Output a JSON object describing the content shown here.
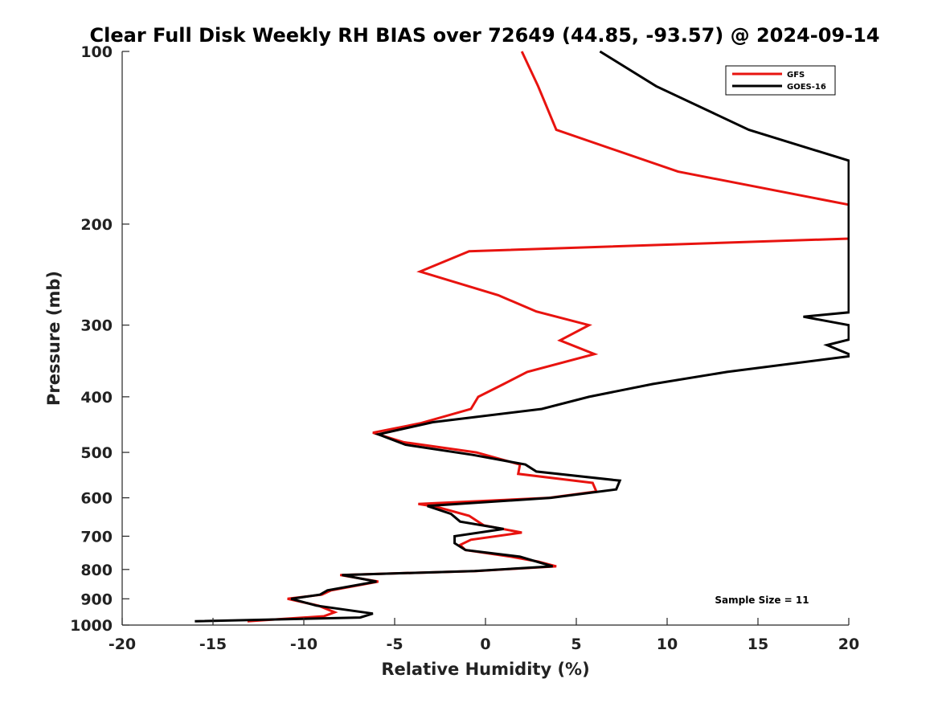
{
  "chart_data": {
    "type": "line",
    "title": "Clear Full Disk Weekly RH BIAS over 72649 (44.85, -93.57) @ 2024-09-14",
    "xlabel": "Relative Humidity (%)",
    "ylabel": "Pressure (mb)",
    "xlim": [
      -20,
      20
    ],
    "ylim": [
      100,
      1000
    ],
    "y_scale": "log",
    "y_reversed": true,
    "x_ticks": [
      -20,
      -15,
      -10,
      -5,
      0,
      5,
      10,
      15,
      20
    ],
    "y_ticks": [
      100,
      200,
      300,
      400,
      500,
      600,
      700,
      800,
      900,
      1000
    ],
    "grid": false,
    "legend_position": "top-right",
    "annotation": "Sample Size = 11",
    "series": [
      {
        "name": "GFS",
        "color": "#e8130f",
        "points": [
          [
            2.0,
            100
          ],
          [
            2.9,
            115
          ],
          [
            3.9,
            137
          ],
          [
            10.6,
            162
          ],
          [
            20.0,
            185
          ],
          [
            20.0,
            212
          ],
          [
            -0.9,
            223
          ],
          [
            -3.6,
            242
          ],
          [
            0.7,
            266
          ],
          [
            2.8,
            284
          ],
          [
            5.7,
            300
          ],
          [
            4.1,
            319
          ],
          [
            6.0,
            337
          ],
          [
            2.3,
            362
          ],
          [
            1.0,
            380
          ],
          [
            -0.4,
            400
          ],
          [
            -0.8,
            420
          ],
          [
            -3.6,
            445
          ],
          [
            -6.2,
            462
          ],
          [
            -4.5,
            480
          ],
          [
            -0.5,
            500
          ],
          [
            1.9,
            525
          ],
          [
            1.8,
            545
          ],
          [
            5.9,
            565
          ],
          [
            6.1,
            585
          ],
          [
            3.5,
            600
          ],
          [
            -3.7,
            615
          ],
          [
            -2.7,
            622
          ],
          [
            -0.9,
            645
          ],
          [
            -0.1,
            670
          ],
          [
            2.0,
            690
          ],
          [
            -0.8,
            710
          ],
          [
            -1.4,
            725
          ],
          [
            -1.1,
            740
          ],
          [
            1.4,
            760
          ],
          [
            2.9,
            775
          ],
          [
            3.9,
            790
          ],
          [
            -0.5,
            805
          ],
          [
            -8.0,
            818
          ],
          [
            -5.9,
            840
          ],
          [
            -8.5,
            870
          ],
          [
            -9.0,
            885
          ],
          [
            -10.9,
            900
          ],
          [
            -9.2,
            925
          ],
          [
            -8.3,
            950
          ],
          [
            -8.9,
            965
          ],
          [
            -13.1,
            985
          ]
        ]
      },
      {
        "name": "GOES-16",
        "color": "#000000",
        "points": [
          [
            6.3,
            100
          ],
          [
            9.4,
            115
          ],
          [
            14.5,
            137
          ],
          [
            20.0,
            155
          ],
          [
            20.0,
            285
          ],
          [
            17.5,
            290
          ],
          [
            20.0,
            300
          ],
          [
            20.0,
            318
          ],
          [
            18.8,
            325
          ],
          [
            20.0,
            337
          ],
          [
            20.0,
            340
          ],
          [
            13.3,
            362
          ],
          [
            9.2,
            380
          ],
          [
            5.7,
            400
          ],
          [
            3.1,
            420
          ],
          [
            -2.9,
            443
          ],
          [
            -5.9,
            465
          ],
          [
            -4.4,
            485
          ],
          [
            -0.7,
            505
          ],
          [
            2.2,
            525
          ],
          [
            2.8,
            540
          ],
          [
            7.4,
            560
          ],
          [
            7.2,
            580
          ],
          [
            3.6,
            600
          ],
          [
            -3.2,
            620
          ],
          [
            -1.9,
            640
          ],
          [
            -1.4,
            660
          ],
          [
            1.0,
            680
          ],
          [
            -1.7,
            700
          ],
          [
            -1.7,
            720
          ],
          [
            -1.1,
            740
          ],
          [
            1.9,
            760
          ],
          [
            3.7,
            790
          ],
          [
            -0.6,
            805
          ],
          [
            -7.9,
            818
          ],
          [
            -6.0,
            840
          ],
          [
            -8.7,
            870
          ],
          [
            -9.1,
            885
          ],
          [
            -10.7,
            900
          ],
          [
            -9.3,
            925
          ],
          [
            -6.2,
            955
          ],
          [
            -6.9,
            970
          ],
          [
            -16.0,
            985
          ]
        ]
      }
    ]
  }
}
